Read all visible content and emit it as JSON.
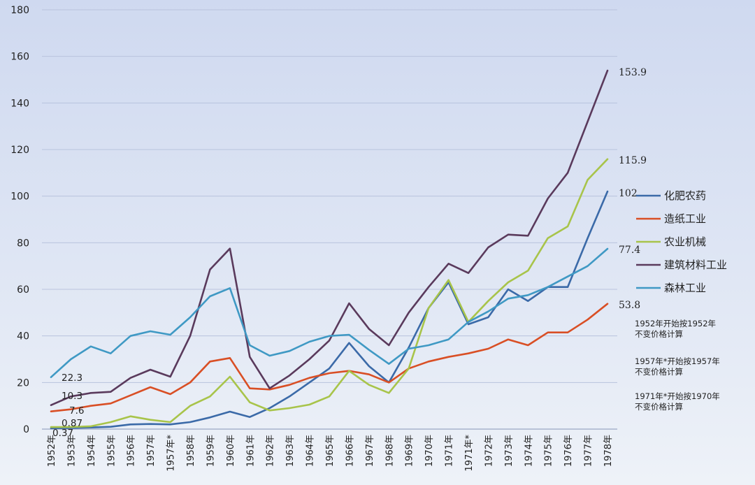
{
  "chart_data": {
    "type": "line",
    "categories": [
      "1952年",
      "1953年",
      "1954年",
      "1955年",
      "1956年",
      "1957年",
      "1957年*",
      "1958年",
      "1959年",
      "1960年",
      "1961年",
      "1962年",
      "1963年",
      "1964年",
      "1965年",
      "1966年",
      "1967年",
      "1968年",
      "1969年",
      "1970年",
      "1971年",
      "1971年*",
      "1972年",
      "1973年",
      "1974年",
      "1975年",
      "1976年",
      "1977年",
      "1978年"
    ],
    "ylim": [
      0,
      180
    ],
    "yticks": [
      0,
      20,
      40,
      60,
      80,
      100,
      120,
      140,
      160,
      180
    ],
    "grid": true,
    "legend_position": "right",
    "series": [
      {
        "name": "化肥农药",
        "color": "#3b6aa8",
        "values": [
          0.37,
          0.5,
          0.7,
          1,
          2,
          2.2,
          2,
          3,
          5,
          7.5,
          5.2,
          9,
          14,
          20,
          26,
          37,
          27,
          20,
          35,
          52,
          63,
          45,
          48,
          60,
          55,
          61,
          61,
          82,
          102
        ]
      },
      {
        "name": "造纸工业",
        "color": "#d94f25",
        "values": [
          7.6,
          8.5,
          10,
          11,
          14.5,
          18,
          15,
          20,
          29,
          30.5,
          17.5,
          17,
          19,
          22,
          24,
          25,
          23.5,
          20,
          26,
          29,
          31,
          32.5,
          34.5,
          38.5,
          36,
          41.5,
          41.5,
          47,
          53.8
        ]
      },
      {
        "name": "农业机械",
        "color": "#a8c44a",
        "values": [
          0.87,
          0.9,
          1.2,
          3,
          5.5,
          4,
          3,
          10,
          14,
          22.5,
          11.5,
          8,
          9,
          10.5,
          14,
          25,
          19,
          15.5,
          26,
          52,
          64,
          46,
          55,
          63,
          68,
          82,
          87,
          107,
          115.9
        ]
      },
      {
        "name": "建筑材料工业",
        "color": "#5a3a5c",
        "values": [
          10.3,
          14,
          15.5,
          16,
          22,
          25.5,
          22.5,
          40,
          68.5,
          77.5,
          31,
          17.5,
          23,
          30,
          38,
          54,
          43,
          36,
          50,
          61,
          71,
          67,
          78,
          83.5,
          83,
          99,
          110,
          132,
          153.9
        ]
      },
      {
        "name": "森林工业",
        "color": "#3f99c4",
        "values": [
          22.3,
          30,
          35.5,
          32.5,
          40,
          42,
          40.5,
          48,
          57,
          60.5,
          36,
          31.5,
          33.5,
          37.5,
          40,
          40.5,
          34,
          28,
          34.5,
          36,
          38.5,
          46,
          50.5,
          56,
          57.5,
          61,
          65.5,
          70,
          77.4
        ]
      }
    ],
    "start_labels": [
      "22.3",
      "10.3",
      "7.6",
      "0.87",
      "0.37"
    ],
    "end_labels": [
      "153.9",
      "115.9",
      "102",
      "77.4",
      "53.8"
    ],
    "notes": [
      [
        "1952年开始按1952年",
        "不变价格计算"
      ],
      [
        "1957年*开始按1957年",
        "不变价格计算"
      ],
      [
        "1971年*开始按1970年",
        "不变价格计算"
      ]
    ]
  }
}
